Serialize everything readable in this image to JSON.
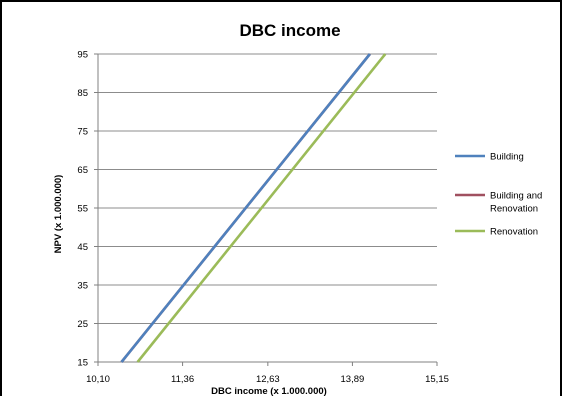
{
  "chart_data": {
    "type": "line",
    "title": "DBC income",
    "xlabel": "DBC income (x 1.000.000)",
    "ylabel": "NPV (x 1.000.000)",
    "xlim": [
      10.1,
      15.15
    ],
    "ylim": [
      15,
      95
    ],
    "x_ticks": [
      "10,10",
      "11,36",
      "12,63",
      "13,89",
      "15,15"
    ],
    "y_ticks": [
      "15",
      "25",
      "35",
      "45",
      "55",
      "65",
      "75",
      "85",
      "95"
    ],
    "grid": "horizontal",
    "legend": "right",
    "series": [
      {
        "name": "Building",
        "color": "#4f81bd",
        "x": [
          10.45,
          14.15
        ],
        "y": [
          15,
          95
        ]
      },
      {
        "name": "Building and Renovation",
        "color": "#a05060",
        "x": [
          10.45,
          14.15
        ],
        "y": [
          15,
          95
        ]
      },
      {
        "name": "Renovation",
        "color": "#9bbb59",
        "x": [
          10.69,
          14.38
        ],
        "y": [
          15,
          95
        ]
      }
    ]
  }
}
